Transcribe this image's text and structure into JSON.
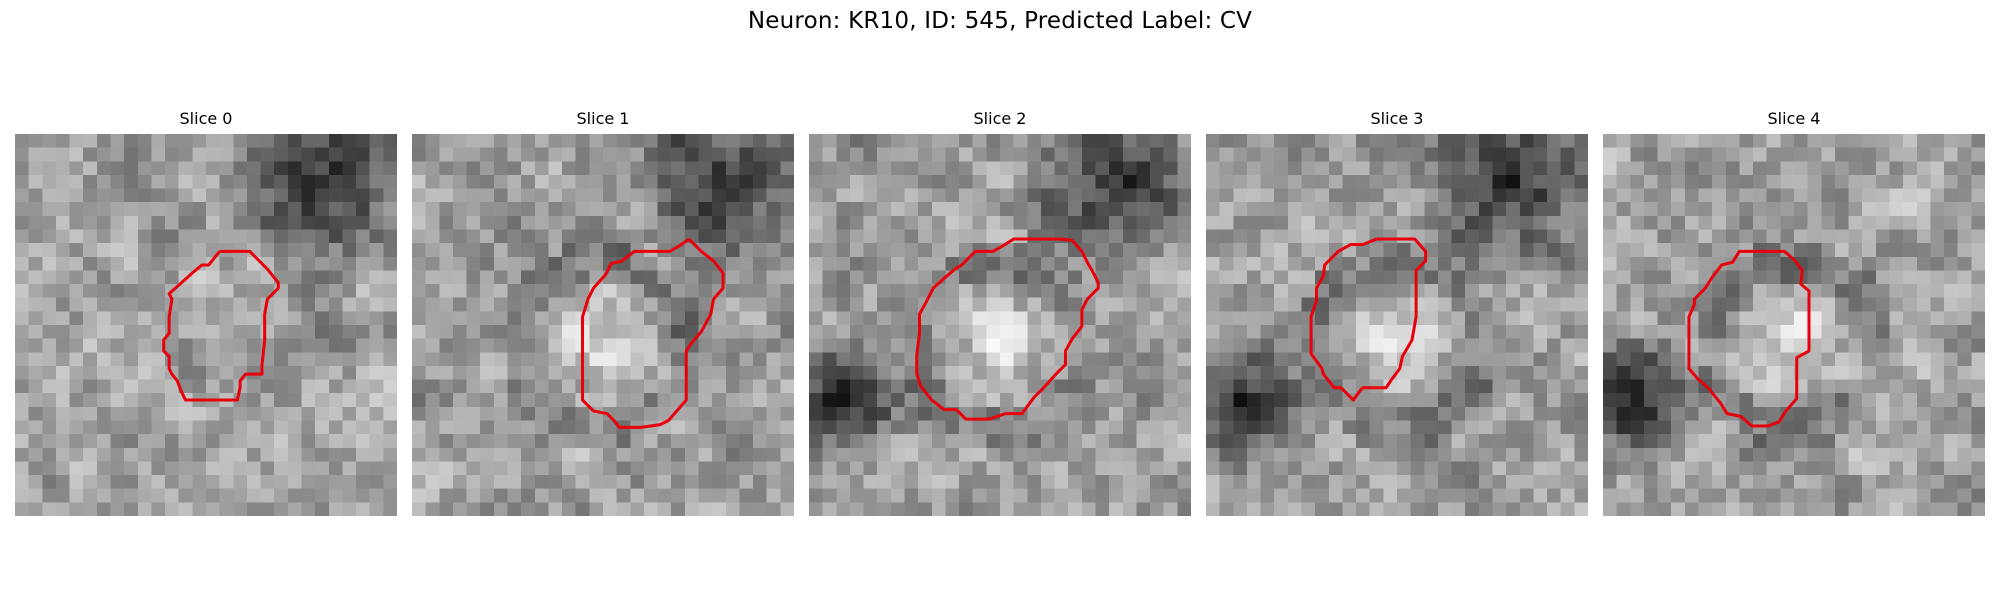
{
  "figure": {
    "title": "Neuron: KR10, ID: 545, Predicted Label: CV"
  },
  "panels": [
    {
      "title": "Slice 0",
      "seed": 11,
      "dark_top_right": true,
      "bright_center": false,
      "dark_bottom_left": false,
      "contour": [
        [
          15,
          8.6
        ],
        [
          17.2,
          8.6
        ],
        [
          18.5,
          9.9
        ],
        [
          19.3,
          10.9
        ],
        [
          19.3,
          11.3
        ],
        [
          18.5,
          12.1
        ],
        [
          18.3,
          13.2
        ],
        [
          18.3,
          15.1
        ],
        [
          18.1,
          17
        ],
        [
          18.1,
          17.6
        ],
        [
          16.9,
          17.6
        ],
        [
          16.5,
          18.1
        ],
        [
          16.5,
          18.6
        ],
        [
          16.3,
          19.5
        ],
        [
          14.2,
          19.5
        ],
        [
          13.3,
          19.5
        ],
        [
          12.5,
          19.5
        ],
        [
          12.2,
          18.9
        ],
        [
          11.9,
          18.1
        ],
        [
          11.5,
          17.6
        ],
        [
          11.3,
          17.2
        ],
        [
          11.3,
          16.3
        ],
        [
          10.9,
          15.9
        ],
        [
          10.9,
          15.1
        ],
        [
          11.3,
          14.6
        ],
        [
          11.3,
          13.4
        ],
        [
          11.5,
          12.1
        ],
        [
          11.3,
          11.7
        ],
        [
          12.2,
          10.9
        ],
        [
          13.1,
          10.1
        ],
        [
          13.7,
          9.6
        ],
        [
          14.2,
          9.6
        ],
        [
          15,
          8.6
        ]
      ]
    },
    {
      "title": "Slice 1",
      "seed": 23,
      "dark_top_right": true,
      "bright_center": true,
      "dark_bottom_left": false,
      "contour": [
        [
          20.3,
          7.7
        ],
        [
          21.2,
          8.6
        ],
        [
          22.1,
          9.3
        ],
        [
          22.8,
          10.2
        ],
        [
          22.8,
          11.3
        ],
        [
          22.1,
          12.1
        ],
        [
          21.9,
          13.2
        ],
        [
          21.2,
          14.5
        ],
        [
          20.5,
          15.3
        ],
        [
          20.1,
          15.9
        ],
        [
          20.1,
          17.6
        ],
        [
          20.1,
          19.5
        ],
        [
          19.5,
          20.2
        ],
        [
          18.8,
          21
        ],
        [
          18.2,
          21.3
        ],
        [
          16.8,
          21.5
        ],
        [
          15.2,
          21.5
        ],
        [
          14.8,
          21
        ],
        [
          14.3,
          20.5
        ],
        [
          13.3,
          20.3
        ],
        [
          12.5,
          19.5
        ],
        [
          12.5,
          18.5
        ],
        [
          12.5,
          17.5
        ],
        [
          12.5,
          16.3
        ],
        [
          12.5,
          14.9
        ],
        [
          12.5,
          13.4
        ],
        [
          12.9,
          12.1
        ],
        [
          13.3,
          11.3
        ],
        [
          14.2,
          10.3
        ],
        [
          14.6,
          9.5
        ],
        [
          15.4,
          9.3
        ],
        [
          16.3,
          8.6
        ],
        [
          17.3,
          8.6
        ],
        [
          18.9,
          8.6
        ],
        [
          19.6,
          8.2
        ],
        [
          20.3,
          7.7
        ]
      ]
    },
    {
      "title": "Slice 2",
      "seed": 37,
      "dark_top_right": true,
      "bright_center": true,
      "dark_bottom_left": true,
      "contour": [
        [
          16.2,
          7.7
        ],
        [
          18.4,
          7.7
        ],
        [
          19.3,
          7.8
        ],
        [
          20,
          8.6
        ],
        [
          20.4,
          9.4
        ],
        [
          20.8,
          10.1
        ],
        [
          21.2,
          10.9
        ],
        [
          21.2,
          11.3
        ],
        [
          20.4,
          12.1
        ],
        [
          20,
          12.9
        ],
        [
          20,
          14.1
        ],
        [
          19.3,
          15
        ],
        [
          18.8,
          15.9
        ],
        [
          18.8,
          16.9
        ],
        [
          18.1,
          17.6
        ],
        [
          17.2,
          18.6
        ],
        [
          16.5,
          19.3
        ],
        [
          15.6,
          20.5
        ],
        [
          14.4,
          20.5
        ],
        [
          13.2,
          20.9
        ],
        [
          11.5,
          20.9
        ],
        [
          10.8,
          20.2
        ],
        [
          9.9,
          20.2
        ],
        [
          9,
          19.5
        ],
        [
          8.2,
          18.5
        ],
        [
          7.9,
          17.6
        ],
        [
          7.9,
          16.2
        ],
        [
          8.1,
          14.6
        ],
        [
          8.1,
          13.2
        ],
        [
          8.6,
          12.3
        ],
        [
          9.1,
          11.3
        ],
        [
          10,
          10.5
        ],
        [
          10.7,
          9.9
        ],
        [
          11.2,
          9.6
        ],
        [
          12.2,
          8.6
        ],
        [
          13.5,
          8.6
        ],
        [
          14.2,
          8.2
        ],
        [
          15,
          7.7
        ],
        [
          16.2,
          7.7
        ]
      ]
    },
    {
      "title": "Slice 3",
      "seed": 53,
      "dark_top_right": true,
      "bright_center": true,
      "dark_bottom_left": true,
      "contour": [
        [
          12.5,
          7.7
        ],
        [
          14.3,
          7.7
        ],
        [
          15.3,
          7.7
        ],
        [
          16.1,
          8.6
        ],
        [
          16.1,
          9.3
        ],
        [
          15.4,
          10
        ],
        [
          15.4,
          11.3
        ],
        [
          15.4,
          13.4
        ],
        [
          15.1,
          15.1
        ],
        [
          14.4,
          16.3
        ],
        [
          14.2,
          17.2
        ],
        [
          13.6,
          18
        ],
        [
          13.2,
          18.6
        ],
        [
          12.2,
          18.6
        ],
        [
          11.5,
          18.6
        ],
        [
          11.3,
          18.8
        ],
        [
          10.8,
          19.5
        ],
        [
          10.4,
          19.1
        ],
        [
          9.9,
          18.6
        ],
        [
          9.4,
          18.6
        ],
        [
          8.6,
          17.6
        ],
        [
          8.5,
          17.2
        ],
        [
          7.7,
          16.1
        ],
        [
          7.7,
          15.1
        ],
        [
          7.7,
          13.4
        ],
        [
          8.1,
          12.2
        ],
        [
          8.1,
          11.3
        ],
        [
          8.6,
          10.4
        ],
        [
          8.7,
          9.6
        ],
        [
          9.7,
          8.6
        ],
        [
          10.6,
          8.1
        ],
        [
          11.5,
          8.1
        ],
        [
          12.5,
          7.7
        ]
      ]
    },
    {
      "title": "Slice 4",
      "seed": 71,
      "dark_top_right": false,
      "bright_center": true,
      "dark_bottom_left": true,
      "contour": [
        [
          10.9,
          8.6
        ],
        [
          13.3,
          8.6
        ],
        [
          14.1,
          9.3
        ],
        [
          14.6,
          10
        ],
        [
          14.5,
          11
        ],
        [
          15.1,
          11.5
        ],
        [
          15.1,
          13
        ],
        [
          15.1,
          15.1
        ],
        [
          15.1,
          15.9
        ],
        [
          14.2,
          16.4
        ],
        [
          14.2,
          17.6
        ],
        [
          14.2,
          19.4
        ],
        [
          13.4,
          20.3
        ],
        [
          12.9,
          21.1
        ],
        [
          12.1,
          21.4
        ],
        [
          11.1,
          21.4
        ],
        [
          10.9,
          21.4
        ],
        [
          10.1,
          20.7
        ],
        [
          9.1,
          20.5
        ],
        [
          8.6,
          19.7
        ],
        [
          7.7,
          18.6
        ],
        [
          6.9,
          17.9
        ],
        [
          6.3,
          17.2
        ],
        [
          6.3,
          16.3
        ],
        [
          6.3,
          15.1
        ],
        [
          6.3,
          13.4
        ],
        [
          6.7,
          12.5
        ],
        [
          6.7,
          12.1
        ],
        [
          7.5,
          11.3
        ],
        [
          8,
          10.5
        ],
        [
          8.7,
          9.6
        ],
        [
          9.5,
          9.4
        ],
        [
          10,
          8.6
        ],
        [
          10.9,
          8.6
        ]
      ]
    }
  ],
  "grid_size": 28,
  "contour_color": "#e8000b"
}
